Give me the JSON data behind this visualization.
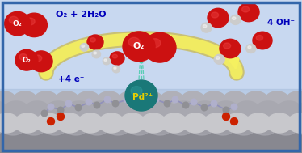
{
  "bg_top": "#c8d8f0",
  "bg_bottom": "#a0b8d8",
  "border_color": "#3366aa",
  "arrow_color": "#f5f060",
  "arrow_edge_color": "#c8aa00",
  "label_left": "O₂ + 2H₂O",
  "label_right": "4 OH⁻",
  "label_electrons": "+4 e⁻",
  "label_pd": "Pd²⁺",
  "label_o2": "O₂",
  "pd_color": "#1a7878",
  "o2_red": "#cc1111",
  "h_white": "#cccccc",
  "nanotube_light": "#c8c8cc",
  "nanotube_mid": "#a8a8b0",
  "nanotube_dark": "#888890",
  "text_blue": "#0000bb",
  "text_yellow": "#e8d000",
  "figsize": [
    3.74,
    1.89
  ],
  "dpi": 100
}
